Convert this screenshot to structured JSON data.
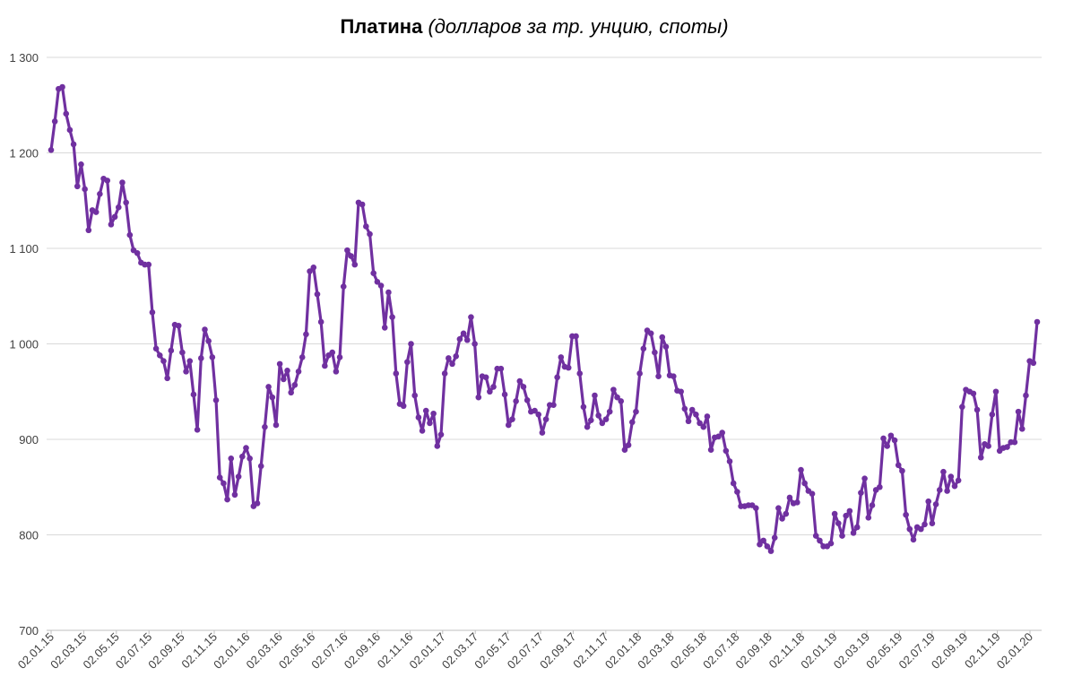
{
  "chart_data": {
    "type": "line",
    "title": "Платина",
    "subtitle": "(долларов за тр. унцию, споты)",
    "xlabel": "",
    "ylabel": "",
    "ylim": [
      700,
      1300
    ],
    "yticks": [
      700,
      800,
      900,
      1000,
      1100,
      1200,
      1300
    ],
    "ytick_labels": [
      "700",
      "800",
      "900",
      "1 000",
      "1 100",
      "1 200",
      "1 300"
    ],
    "xtick_labels": [
      "02.01.15",
      "02.03.15",
      "02.05.15",
      "02.07.15",
      "02.09.15",
      "02.11.15",
      "02.01.16",
      "02.03.16",
      "02.05.16",
      "02.07.16",
      "02.09.16",
      "02.11.16",
      "02.01.17",
      "02.03.17",
      "02.05.17",
      "02.07.17",
      "02.09.17",
      "02.11.17",
      "02.01.18",
      "02.03.18",
      "02.05.18",
      "02.07.18",
      "02.09.18",
      "02.11.18",
      "02.01.19",
      "02.03.19",
      "02.05.19",
      "02.07.19",
      "02.09.19",
      "02.11.19",
      "02.01.20"
    ],
    "grid": true,
    "legend": "none",
    "color": "#7030A0",
    "series": [
      {
        "values": [
          1203,
          1233,
          1267,
          1269,
          1241,
          1224,
          1209,
          1165,
          1188,
          1162,
          1119,
          1140,
          1138,
          1157,
          1173,
          1171,
          1125,
          1133,
          1143,
          1169,
          1148,
          1114,
          1098,
          1095,
          1085,
          1083,
          1083,
          1033,
          995,
          988,
          982,
          964,
          993,
          1020,
          1019,
          991,
          971,
          982,
          947,
          910,
          985,
          1015,
          1003,
          986,
          941,
          860,
          854,
          837,
          880,
          842,
          861,
          882,
          891,
          880,
          830,
          833,
          872,
          913,
          955,
          944,
          915,
          979,
          963,
          972,
          949,
          957,
          971,
          986,
          1010,
          1076,
          1080,
          1052,
          1023,
          977,
          988,
          991,
          971,
          986,
          1060,
          1098,
          1092,
          1083,
          1148,
          1146,
          1123,
          1115,
          1074,
          1065,
          1061,
          1017,
          1054,
          1028,
          969,
          937,
          935,
          981,
          1000,
          946,
          923,
          909,
          930,
          917,
          927,
          893,
          905,
          969,
          985,
          979,
          987,
          1005,
          1011,
          1004,
          1028,
          1000,
          944,
          966,
          965,
          950,
          955,
          974,
          974,
          947,
          915,
          921,
          940,
          961,
          955,
          941,
          929,
          930,
          926,
          907,
          921,
          936,
          936,
          965,
          986,
          976,
          975,
          1008,
          1008,
          969,
          934,
          913,
          920,
          946,
          925,
          917,
          921,
          929,
          952,
          944,
          940,
          889,
          894,
          918,
          929,
          969,
          995,
          1014,
          1011,
          991,
          966,
          1007,
          997,
          967,
          966,
          951,
          950,
          932,
          919,
          931,
          926,
          917,
          913,
          924,
          889,
          902,
          903,
          907,
          888,
          877,
          854,
          845,
          830,
          830,
          831,
          831,
          828,
          790,
          794,
          788,
          783,
          797,
          828,
          817,
          822,
          839,
          833,
          834,
          868,
          854,
          846,
          843,
          799,
          794,
          788,
          788,
          791,
          822,
          812,
          799,
          820,
          825,
          802,
          808,
          844,
          859,
          818,
          831,
          847,
          850,
          901,
          893,
          904,
          899,
          873,
          867,
          821,
          806,
          795,
          808,
          806,
          811,
          835,
          812,
          832,
          847,
          866,
          846,
          861,
          851,
          857,
          934,
          952,
          950,
          948,
          931,
          881,
          895,
          893,
          926,
          950,
          888,
          891,
          892,
          897,
          897,
          929,
          911,
          946,
          982,
          980,
          1023
        ]
      }
    ]
  }
}
